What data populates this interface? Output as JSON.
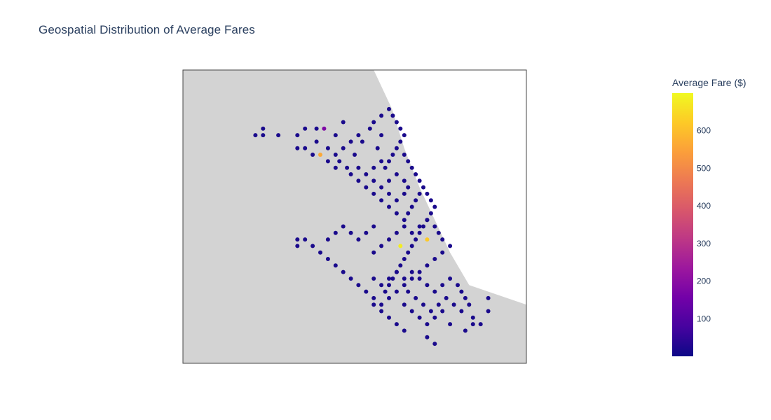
{
  "chart_data": {
    "type": "scatter",
    "title": "Geospatial Distribution of Average Fares",
    "map": {
      "land_color": "#d3d3d3",
      "water_color": "#ffffff",
      "frame_color": "#444444",
      "lon_range": [
        -87.95,
        -87.5
      ],
      "lat_range": [
        41.63,
        42.08
      ],
      "shoreline": [
        [
          -87.7,
          42.08
        ],
        [
          -87.676,
          42.02
        ],
        [
          -87.66,
          41.96
        ],
        [
          -87.64,
          41.9
        ],
        [
          -87.62,
          41.85
        ],
        [
          -87.6,
          41.8
        ],
        [
          -87.575,
          41.75
        ],
        [
          -87.5,
          41.72
        ]
      ]
    },
    "colorbar": {
      "title": "Average Fare ($)",
      "range": [
        0,
        700
      ],
      "ticks": [
        100,
        200,
        300,
        400,
        500,
        600
      ],
      "colorscale": [
        "#0d0887",
        "#46039f",
        "#7201a8",
        "#9c179e",
        "#bd3786",
        "#d8576b",
        "#ed7953",
        "#fb9f3a",
        "#fdca26",
        "#f0f921"
      ]
    },
    "marker_color_default": "#1a0a8c",
    "points": [
      [
        -87.855,
        41.98,
        8
      ],
      [
        -87.845,
        41.99,
        10
      ],
      [
        -87.845,
        41.98,
        12
      ],
      [
        -87.825,
        41.98,
        9
      ],
      [
        -87.79,
        41.99,
        14
      ],
      [
        -87.8,
        41.98,
        8
      ],
      [
        -87.775,
        41.97,
        11
      ],
      [
        -87.775,
        41.99,
        10
      ],
      [
        -87.79,
        41.96,
        12
      ],
      [
        -87.78,
        41.95,
        10
      ],
      [
        -87.8,
        41.96,
        9
      ],
      [
        -87.765,
        41.99,
        180
      ],
      [
        -87.77,
        41.95,
        560
      ],
      [
        -87.74,
        42.0,
        15
      ],
      [
        -87.75,
        41.98,
        9
      ],
      [
        -87.76,
        41.96,
        7
      ],
      [
        -87.745,
        41.94,
        8
      ],
      [
        -87.735,
        41.93,
        11
      ],
      [
        -87.725,
        41.95,
        12
      ],
      [
        -87.715,
        41.97,
        10
      ],
      [
        -87.705,
        41.99,
        9
      ],
      [
        -87.695,
        41.96,
        8
      ],
      [
        -87.69,
        41.98,
        10
      ],
      [
        -87.73,
        41.97,
        9
      ],
      [
        -87.72,
        41.98,
        11
      ],
      [
        -87.74,
        41.96,
        10
      ],
      [
        -87.75,
        41.95,
        9
      ],
      [
        -87.76,
        41.94,
        12
      ],
      [
        -87.75,
        41.93,
        8
      ],
      [
        -87.7,
        42.0,
        10
      ],
      [
        -87.69,
        42.01,
        9
      ],
      [
        -87.68,
        42.02,
        11
      ],
      [
        -87.675,
        42.01,
        8
      ],
      [
        -87.67,
        42.0,
        10
      ],
      [
        -87.665,
        41.99,
        9
      ],
      [
        -87.66,
        41.98,
        12
      ],
      [
        -87.665,
        41.97,
        10
      ],
      [
        -87.67,
        41.96,
        11
      ],
      [
        -87.675,
        41.95,
        9
      ],
      [
        -87.68,
        41.94,
        10
      ],
      [
        -87.685,
        41.93,
        8
      ],
      [
        -87.66,
        41.95,
        12
      ],
      [
        -87.655,
        41.94,
        9
      ],
      [
        -87.65,
        41.93,
        11
      ],
      [
        -87.645,
        41.92,
        10
      ],
      [
        -87.64,
        41.91,
        13
      ],
      [
        -87.635,
        41.9,
        10
      ],
      [
        -87.64,
        41.89,
        12
      ],
      [
        -87.645,
        41.88,
        9
      ],
      [
        -87.65,
        41.87,
        11
      ],
      [
        -87.655,
        41.86,
        10
      ],
      [
        -87.66,
        41.85,
        9
      ],
      [
        -87.67,
        41.86,
        8
      ],
      [
        -87.68,
        41.87,
        12
      ],
      [
        -87.69,
        41.88,
        10
      ],
      [
        -87.7,
        41.89,
        11
      ],
      [
        -87.71,
        41.9,
        9
      ],
      [
        -87.72,
        41.91,
        10
      ],
      [
        -87.73,
        41.92,
        12
      ],
      [
        -87.7,
        41.93,
        9
      ],
      [
        -87.69,
        41.94,
        11
      ],
      [
        -87.68,
        41.91,
        10
      ],
      [
        -87.67,
        41.92,
        12
      ],
      [
        -87.66,
        41.91,
        8
      ],
      [
        -87.655,
        41.9,
        11
      ],
      [
        -87.66,
        41.89,
        10
      ],
      [
        -87.67,
        41.88,
        9
      ],
      [
        -87.68,
        41.89,
        12
      ],
      [
        -87.69,
        41.9,
        8
      ],
      [
        -87.7,
        41.91,
        10
      ],
      [
        -87.71,
        41.92,
        11
      ],
      [
        -87.72,
        41.93,
        9
      ],
      [
        -87.63,
        41.89,
        14
      ],
      [
        -87.625,
        41.88,
        11
      ],
      [
        -87.62,
        41.87,
        10
      ],
      [
        -87.625,
        41.86,
        9
      ],
      [
        -87.63,
        41.85,
        12
      ],
      [
        -87.635,
        41.84,
        10
      ],
      [
        -87.64,
        41.83,
        11
      ],
      [
        -87.645,
        41.82,
        9
      ],
      [
        -87.65,
        41.81,
        10
      ],
      [
        -87.655,
        41.8,
        12
      ],
      [
        -87.66,
        41.79,
        9
      ],
      [
        -87.665,
        41.78,
        11
      ],
      [
        -87.67,
        41.77,
        10
      ],
      [
        -87.675,
        41.76,
        8
      ],
      [
        -87.68,
        41.75,
        12
      ],
      [
        -87.685,
        41.74,
        10
      ],
      [
        -87.63,
        41.82,
        620
      ],
      [
        -87.665,
        41.81,
        680
      ],
      [
        -87.6,
        41.81,
        11
      ],
      [
        -87.61,
        41.82,
        10
      ],
      [
        -87.615,
        41.83,
        12
      ],
      [
        -87.62,
        41.84,
        9
      ],
      [
        -87.61,
        41.8,
        10
      ],
      [
        -87.62,
        41.79,
        11
      ],
      [
        -87.63,
        41.78,
        9
      ],
      [
        -87.64,
        41.77,
        12
      ],
      [
        -87.65,
        41.76,
        10
      ],
      [
        -87.66,
        41.75,
        11
      ],
      [
        -87.67,
        41.74,
        9
      ],
      [
        -87.68,
        41.73,
        10
      ],
      [
        -87.69,
        41.72,
        12
      ],
      [
        -87.7,
        41.73,
        8
      ],
      [
        -87.71,
        41.74,
        11
      ],
      [
        -87.72,
        41.75,
        10
      ],
      [
        -87.73,
        41.76,
        9
      ],
      [
        -87.74,
        41.77,
        12
      ],
      [
        -87.75,
        41.78,
        10
      ],
      [
        -87.76,
        41.79,
        11
      ],
      [
        -87.77,
        41.8,
        9
      ],
      [
        -87.78,
        41.81,
        10
      ],
      [
        -87.79,
        41.82,
        12
      ],
      [
        -87.8,
        41.81,
        9
      ],
      [
        -87.8,
        41.82,
        10
      ],
      [
        -87.7,
        41.8,
        11
      ],
      [
        -87.69,
        41.81,
        10
      ],
      [
        -87.68,
        41.82,
        12
      ],
      [
        -87.67,
        41.83,
        9
      ],
      [
        -87.66,
        41.84,
        11
      ],
      [
        -87.65,
        41.83,
        10
      ],
      [
        -87.64,
        41.84,
        9
      ],
      [
        -87.63,
        41.85,
        12
      ],
      [
        -87.7,
        41.84,
        10
      ],
      [
        -87.71,
        41.83,
        11
      ],
      [
        -87.72,
        41.82,
        9
      ],
      [
        -87.73,
        41.83,
        10
      ],
      [
        -87.74,
        41.84,
        12
      ],
      [
        -87.75,
        41.83,
        8
      ],
      [
        -87.76,
        41.82,
        11
      ],
      [
        -87.7,
        41.76,
        10
      ],
      [
        -87.69,
        41.75,
        9
      ],
      [
        -87.68,
        41.76,
        11
      ],
      [
        -87.67,
        41.77,
        10
      ],
      [
        -87.66,
        41.76,
        12
      ],
      [
        -87.65,
        41.77,
        9
      ],
      [
        -87.64,
        41.76,
        11
      ],
      [
        -87.63,
        41.75,
        10
      ],
      [
        -87.62,
        41.74,
        9
      ],
      [
        -87.61,
        41.75,
        12
      ],
      [
        -87.6,
        41.76,
        10
      ],
      [
        -87.59,
        41.75,
        11
      ],
      [
        -87.585,
        41.74,
        9
      ],
      [
        -87.58,
        41.73,
        10
      ],
      [
        -87.575,
        41.72,
        12
      ],
      [
        -87.66,
        41.72,
        10
      ],
      [
        -87.65,
        41.71,
        11
      ],
      [
        -87.64,
        41.7,
        9
      ],
      [
        -87.63,
        41.69,
        12
      ],
      [
        -87.62,
        41.7,
        10
      ],
      [
        -87.61,
        41.71,
        11
      ],
      [
        -87.6,
        41.69,
        9
      ],
      [
        -87.58,
        41.68,
        10
      ],
      [
        -87.57,
        41.69,
        12
      ],
      [
        -87.63,
        41.67,
        9
      ],
      [
        -87.62,
        41.66,
        10
      ],
      [
        -87.66,
        41.68,
        11
      ],
      [
        -87.67,
        41.69,
        10
      ],
      [
        -87.68,
        41.7,
        9
      ],
      [
        -87.69,
        41.71,
        12
      ],
      [
        -87.7,
        41.72,
        10
      ],
      [
        -87.55,
        41.73,
        11
      ],
      [
        -87.55,
        41.71,
        10
      ],
      [
        -87.56,
        41.69,
        9
      ],
      [
        -87.57,
        41.7,
        12
      ],
      [
        -87.585,
        41.71,
        10
      ],
      [
        -87.595,
        41.72,
        11
      ],
      [
        -87.605,
        41.73,
        9
      ],
      [
        -87.615,
        41.72,
        10
      ],
      [
        -87.625,
        41.71,
        12
      ],
      [
        -87.635,
        41.72,
        9
      ],
      [
        -87.645,
        41.73,
        11
      ],
      [
        -87.655,
        41.74,
        10
      ]
    ]
  }
}
